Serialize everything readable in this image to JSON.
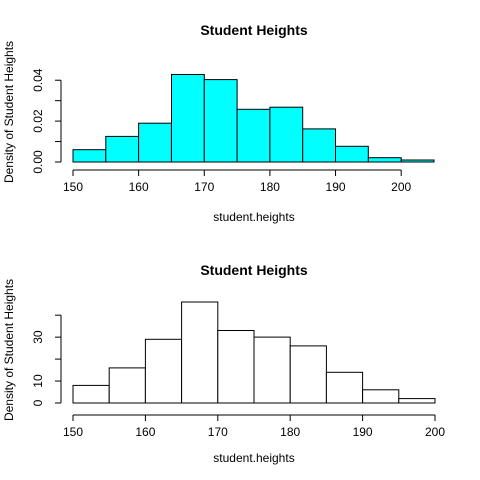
{
  "chart_data": [
    {
      "type": "histogram",
      "title": "Student Heights",
      "xlabel": "student.heights",
      "ylabel": "Density of Student Heights",
      "bin_edges": [
        150,
        155,
        160,
        165,
        170,
        175,
        180,
        185,
        190,
        195,
        200,
        205
      ],
      "values": [
        0.006,
        0.0125,
        0.019,
        0.0428,
        0.0403,
        0.0258,
        0.0268,
        0.0162,
        0.0077,
        0.0021,
        0.001
      ],
      "xlim": [
        150,
        205
      ],
      "ylim": [
        0,
        0.045
      ],
      "x_ticks": [
        150,
        160,
        170,
        180,
        190,
        200
      ],
      "y_ticks": [
        0.0,
        0.01,
        0.02,
        0.03,
        0.04
      ],
      "y_tick_labels": [
        "0.00",
        "",
        "0.02",
        "",
        "0.04"
      ],
      "fill_color": "#00ffff",
      "grid": false
    },
    {
      "type": "histogram",
      "title": "Student Heights",
      "xlabel": "student.heights",
      "ylabel": "Density of Student Heights",
      "bin_edges": [
        150,
        155,
        160,
        165,
        170,
        175,
        180,
        185,
        190,
        195,
        200
      ],
      "values": [
        8,
        16,
        29,
        46,
        33,
        30,
        26,
        14,
        6,
        2
      ],
      "xlim": [
        150,
        200
      ],
      "ylim": [
        0,
        46
      ],
      "x_ticks": [
        150,
        160,
        170,
        180,
        190,
        200
      ],
      "y_ticks": [
        0,
        10,
        20,
        30,
        40
      ],
      "y_tick_labels": [
        "0",
        "10",
        "",
        "30",
        ""
      ],
      "fill_color": "#ffffff",
      "grid": false
    }
  ]
}
